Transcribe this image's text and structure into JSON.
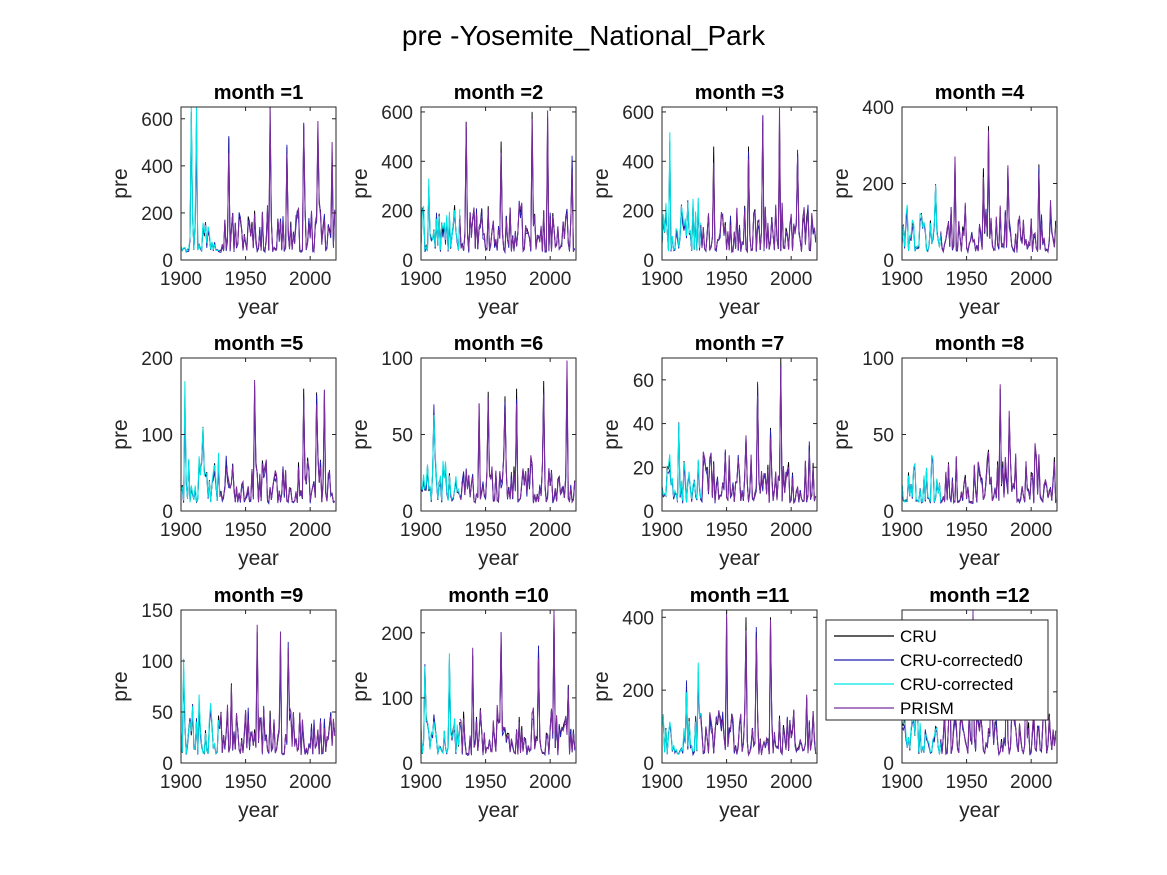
{
  "figure": {
    "suptitle": "pre -Yosemite_National_Park"
  },
  "chart_data": {
    "type": "line",
    "suptitle": "pre -Yosemite_National_Park",
    "xlabel": "year",
    "ylabel": "pre",
    "xlim": [
      1900,
      2020
    ],
    "xticks": [
      1900,
      1950,
      2000
    ],
    "legend": {
      "location": "top-right of month =12 panel",
      "entries": [
        {
          "name": "CRU",
          "color": "#000000"
        },
        {
          "name": "CRU-corrected0",
          "color": "#1f1fb4"
        },
        {
          "name": "CRU-corrected",
          "color": "#00e5e5"
        },
        {
          "name": "PRISM",
          "color": "#7b2d9e"
        }
      ]
    },
    "colors": {
      "CRU": "#000000",
      "CRU-corrected0": "#1f1fb4",
      "CRU-corrected": "#00e5e5",
      "PRISM": "#7b2d9e"
    },
    "series_periods": {
      "CRU": [
        1900,
        2019
      ],
      "CRU-corrected0": [
        1900,
        2019
      ],
      "CRU-corrected": [
        1900,
        1930
      ],
      "PRISM": [
        1930,
        2019
      ]
    },
    "panels": [
      {
        "title": "month =1",
        "ylim": [
          0,
          650
        ],
        "yticks": [
          0,
          200,
          400,
          600
        ],
        "peaks": [
          [
            1908,
            630
          ],
          [
            1912,
            610
          ],
          [
            1937,
            520
          ],
          [
            1969,
            650
          ],
          [
            1982,
            480
          ],
          [
            1995,
            570
          ],
          [
            2006,
            560
          ],
          [
            2017,
            460
          ]
        ]
      },
      {
        "title": "month =2",
        "ylim": [
          0,
          620
        ],
        "yticks": [
          0,
          200,
          400,
          600
        ],
        "peaks": [
          [
            1906,
            300
          ],
          [
            1935,
            560
          ],
          [
            1962,
            480
          ],
          [
            1986,
            600
          ],
          [
            1998,
            580
          ],
          [
            2017,
            400
          ]
        ]
      },
      {
        "title": "month =3",
        "ylim": [
          0,
          620
        ],
        "yticks": [
          0,
          200,
          400,
          600
        ],
        "peaks": [
          [
            1906,
            480
          ],
          [
            1940,
            460
          ],
          [
            1967,
            460
          ],
          [
            1978,
            560
          ],
          [
            1991,
            580
          ],
          [
            2005,
            430
          ]
        ]
      },
      {
        "title": "month =4",
        "ylim": [
          0,
          400
        ],
        "yticks": [
          0,
          200,
          400
        ],
        "peaks": [
          [
            1926,
            190
          ],
          [
            1941,
            250
          ],
          [
            1963,
            240
          ],
          [
            1967,
            350
          ],
          [
            1982,
            240
          ],
          [
            2006,
            250
          ]
        ]
      },
      {
        "title": "month =5",
        "ylim": [
          0,
          200
        ],
        "yticks": [
          0,
          100,
          200
        ],
        "peaks": [
          [
            1903,
            150
          ],
          [
            1917,
            110
          ],
          [
            1957,
            165
          ],
          [
            1995,
            160
          ],
          [
            2005,
            155
          ],
          [
            2011,
            145
          ]
        ]
      },
      {
        "title": "month =6",
        "ylim": [
          0,
          100
        ],
        "yticks": [
          0,
          50,
          100
        ],
        "peaks": [
          [
            1910,
            65
          ],
          [
            1945,
            70
          ],
          [
            1952,
            78
          ],
          [
            1965,
            75
          ],
          [
            1974,
            80
          ],
          [
            1995,
            85
          ],
          [
            2013,
            92
          ]
        ]
      },
      {
        "title": "month =7",
        "ylim": [
          0,
          70
        ],
        "yticks": [
          0,
          20,
          40,
          60
        ],
        "peaks": [
          [
            1913,
            39
          ],
          [
            1949,
            27
          ],
          [
            1965,
            33
          ],
          [
            1974,
            58
          ],
          [
            1984,
            38
          ],
          [
            1992,
            70
          ],
          [
            2014,
            30
          ]
        ]
      },
      {
        "title": "month =8",
        "ylim": [
          0,
          100
        ],
        "yticks": [
          0,
          50,
          100
        ],
        "peaks": [
          [
            1924,
            33
          ],
          [
            1934,
            25
          ],
          [
            1961,
            22
          ],
          [
            1967,
            40
          ],
          [
            1976,
            80
          ],
          [
            1983,
            60
          ],
          [
            2003,
            42
          ]
        ]
      },
      {
        "title": "month =9",
        "ylim": [
          0,
          150
        ],
        "yticks": [
          0,
          50,
          100,
          150
        ],
        "peaks": [
          [
            1902,
            92
          ],
          [
            1914,
            60
          ],
          [
            1939,
            78
          ],
          [
            1959,
            128
          ],
          [
            1977,
            118
          ],
          [
            1983,
            108
          ],
          [
            2011,
            40
          ]
        ]
      },
      {
        "title": "month =10",
        "ylim": [
          0,
          235
        ],
        "yticks": [
          0,
          100,
          200
        ],
        "peaks": [
          [
            1903,
            145
          ],
          [
            1922,
            155
          ],
          [
            1940,
            165
          ],
          [
            1962,
            190
          ],
          [
            1991,
            180
          ],
          [
            2003,
            235
          ],
          [
            2014,
            120
          ]
        ]
      },
      {
        "title": "month =11",
        "ylim": [
          0,
          420
        ],
        "yticks": [
          0,
          200,
          400
        ],
        "peaks": [
          [
            1919,
            210
          ],
          [
            1928,
            250
          ],
          [
            1950,
            400
          ],
          [
            1965,
            400
          ],
          [
            1973,
            360
          ],
          [
            1984,
            400
          ],
          [
            2012,
            180
          ]
        ]
      },
      {
        "title": "month =12",
        "ylim": [
          0,
          430
        ],
        "yticks": [
          0,
          200
        ],
        "peaks": [
          [
            1912,
            150
          ],
          [
            1937,
            270
          ],
          [
            1955,
            430
          ],
          [
            1969,
            280
          ],
          [
            1981,
            360
          ],
          [
            1996,
            340
          ],
          [
            2010,
            200
          ]
        ]
      }
    ]
  }
}
